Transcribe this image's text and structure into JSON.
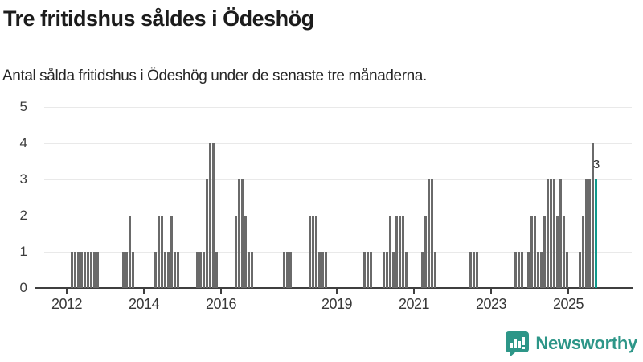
{
  "header": {
    "title": "Tre fritidshus såldes i Ödeshög",
    "subtitle": "Antal sålda fritidshus i Ödeshög under de senaste tre månaderna."
  },
  "chart_data": {
    "type": "bar",
    "title": "Tre fritidshus såldes i Ödeshög",
    "subtitle": "Antal sålda fritidshus i Ödeshög under de senaste tre månaderna.",
    "ylim": [
      0,
      5
    ],
    "y_ticks": [
      0,
      1,
      2,
      3,
      4,
      5
    ],
    "x_ticks": [
      2012,
      2014,
      2016,
      2019,
      2021,
      2023,
      2025
    ],
    "grid": "horizontal",
    "bar_color": "#6a6a6a",
    "highlight_color": "#0e9a8c",
    "highlight_month": "2025-09",
    "annotation": {
      "text": "3",
      "month": "2025-09",
      "value": 3
    },
    "points": [
      [
        "2012-02",
        1
      ],
      [
        "2012-03",
        1
      ],
      [
        "2012-04",
        1
      ],
      [
        "2012-05",
        1
      ],
      [
        "2012-06",
        1
      ],
      [
        "2012-07",
        1
      ],
      [
        "2012-08",
        1
      ],
      [
        "2012-09",
        1
      ],
      [
        "2012-10",
        1
      ],
      [
        "2013-06",
        1
      ],
      [
        "2013-07",
        1
      ],
      [
        "2013-08",
        2
      ],
      [
        "2013-09",
        1
      ],
      [
        "2014-04",
        1
      ],
      [
        "2014-05",
        2
      ],
      [
        "2014-06",
        2
      ],
      [
        "2014-07",
        1
      ],
      [
        "2014-08",
        1
      ],
      [
        "2014-09",
        2
      ],
      [
        "2014-10",
        1
      ],
      [
        "2014-11",
        1
      ],
      [
        "2015-05",
        1
      ],
      [
        "2015-06",
        1
      ],
      [
        "2015-07",
        1
      ],
      [
        "2015-08",
        3
      ],
      [
        "2015-09",
        4
      ],
      [
        "2015-10",
        4
      ],
      [
        "2015-11",
        1
      ],
      [
        "2016-05",
        2
      ],
      [
        "2016-06",
        3
      ],
      [
        "2016-07",
        3
      ],
      [
        "2016-08",
        2
      ],
      [
        "2016-09",
        1
      ],
      [
        "2016-10",
        1
      ],
      [
        "2017-08",
        1
      ],
      [
        "2017-09",
        1
      ],
      [
        "2017-10",
        1
      ],
      [
        "2018-04",
        2
      ],
      [
        "2018-05",
        2
      ],
      [
        "2018-06",
        2
      ],
      [
        "2018-07",
        1
      ],
      [
        "2018-08",
        1
      ],
      [
        "2018-09",
        1
      ],
      [
        "2019-09",
        1
      ],
      [
        "2019-10",
        1
      ],
      [
        "2019-11",
        1
      ],
      [
        "2020-03",
        1
      ],
      [
        "2020-04",
        1
      ],
      [
        "2020-05",
        2
      ],
      [
        "2020-06",
        1
      ],
      [
        "2020-07",
        2
      ],
      [
        "2020-08",
        2
      ],
      [
        "2020-09",
        2
      ],
      [
        "2020-10",
        1
      ],
      [
        "2021-03",
        1
      ],
      [
        "2021-04",
        2
      ],
      [
        "2021-05",
        3
      ],
      [
        "2021-06",
        3
      ],
      [
        "2021-07",
        1
      ],
      [
        "2022-06",
        1
      ],
      [
        "2022-07",
        1
      ],
      [
        "2022-08",
        1
      ],
      [
        "2023-08",
        1
      ],
      [
        "2023-09",
        1
      ],
      [
        "2023-10",
        1
      ],
      [
        "2023-12",
        1
      ],
      [
        "2024-01",
        2
      ],
      [
        "2024-02",
        2
      ],
      [
        "2024-03",
        1
      ],
      [
        "2024-04",
        1
      ],
      [
        "2024-05",
        2
      ],
      [
        "2024-06",
        3
      ],
      [
        "2024-07",
        3
      ],
      [
        "2024-08",
        3
      ],
      [
        "2024-09",
        2
      ],
      [
        "2024-10",
        3
      ],
      [
        "2024-11",
        2
      ],
      [
        "2024-12",
        1
      ],
      [
        "2025-04",
        1
      ],
      [
        "2025-05",
        2
      ],
      [
        "2025-06",
        3
      ],
      [
        "2025-07",
        3
      ],
      [
        "2025-08",
        4
      ],
      [
        "2025-09",
        3
      ]
    ]
  },
  "footer": {
    "brand": "Newsworthy"
  }
}
